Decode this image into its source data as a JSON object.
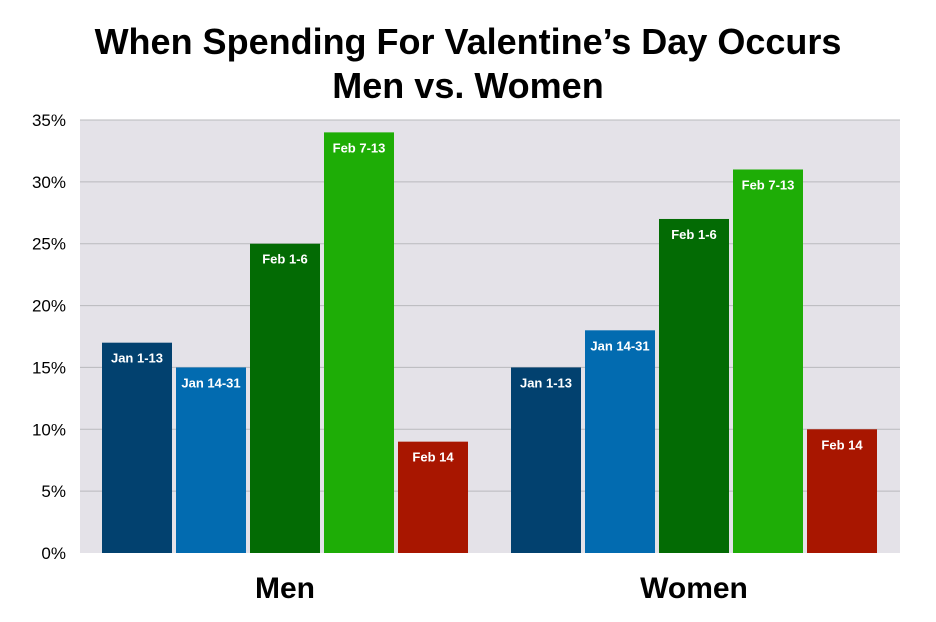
{
  "colors": {
    "plot_background": "#e4e2e8",
    "gridline": "#b9b9bd",
    "bar_label": "#ffffff"
  },
  "chart_data": {
    "type": "bar",
    "title_line1": "When Spending For Valentine’s Day Occurs",
    "title_line2": "Men vs. Women",
    "categories": [
      "Men",
      "Women"
    ],
    "series": [
      {
        "name": "Jan 1-13",
        "color": "#02416f",
        "values": [
          17,
          15
        ]
      },
      {
        "name": "Jan 14-31",
        "color": "#026bb0",
        "values": [
          15,
          18
        ]
      },
      {
        "name": "Feb 1-6",
        "color": "#036b04",
        "values": [
          25,
          27
        ]
      },
      {
        "name": "Feb 7-13",
        "color": "#1ead06",
        "values": [
          34,
          31
        ]
      },
      {
        "name": "Feb 14",
        "color": "#a81600",
        "values": [
          9,
          10
        ]
      }
    ],
    "ylim": [
      0,
      35
    ],
    "yticks": [
      0,
      5,
      10,
      15,
      20,
      25,
      30,
      35
    ],
    "ytick_suffix": "%",
    "grid": true,
    "legend": "none",
    "bar_labels": "inside-top"
  }
}
